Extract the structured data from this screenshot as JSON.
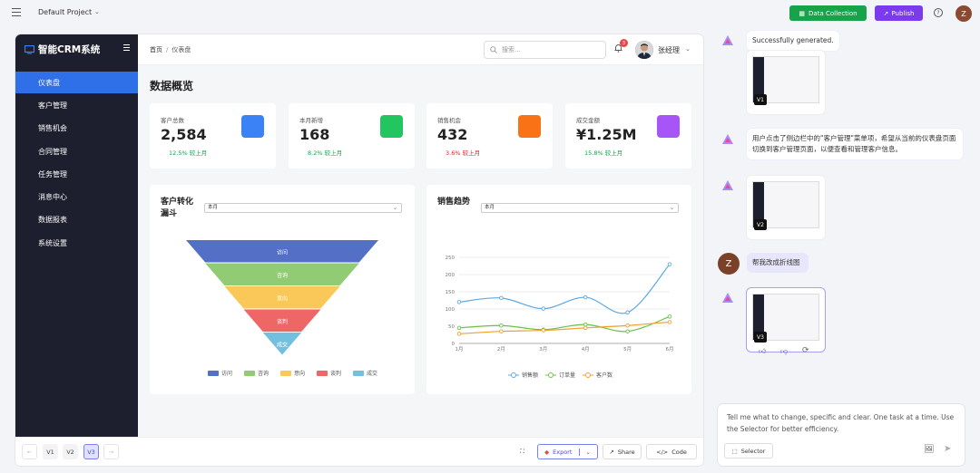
{
  "topbar": {
    "project_name": "Default Project",
    "data_collection_label": "Data Collection",
    "publish_label": "Publish",
    "help_glyph": "?",
    "avatar_letter": "Z"
  },
  "app": {
    "brand": "智能CRM系统",
    "nav": [
      "仪表盘",
      "客户管理",
      "销售机会",
      "合同管理",
      "任务管理",
      "消息中心",
      "数据报表",
      "系统设置"
    ],
    "breadcrumb_home": "首页",
    "breadcrumb_sep": "/",
    "breadcrumb_current": "仪表盘",
    "search_placeholder": "搜索...",
    "notif_count": "3",
    "user_name": "张经理",
    "page_title": "数据概览",
    "stats": [
      {
        "label": "客户总数",
        "value": "2,584",
        "change": "12.5% 较上月",
        "color": "#3b82f6",
        "change_color": "#16a34a"
      },
      {
        "label": "本月新增",
        "value": "168",
        "change": "8.2% 较上月",
        "color": "#22c55e",
        "change_color": "#16a34a"
      },
      {
        "label": "销售机会",
        "value": "432",
        "change": "3.6% 较上月",
        "color": "#f97316",
        "change_color": "#dc2626"
      },
      {
        "label": "成交金额",
        "value": "¥1.25M",
        "change": "15.8% 较上月",
        "color": "#a855f7",
        "change_color": "#16a34a"
      }
    ],
    "funnel_panel": {
      "title": "客户转化漏斗",
      "select": "本月"
    },
    "trend_panel": {
      "title": "销售趋势",
      "select": "本月"
    }
  },
  "chart_data": [
    {
      "type": "funnel",
      "stages": [
        "访问",
        "咨询",
        "意向",
        "谈判",
        "成交"
      ],
      "colors": [
        "#5470c6",
        "#91cc75",
        "#fac858",
        "#ee6666",
        "#73c0de"
      ],
      "legend": [
        "访问",
        "咨询",
        "意向",
        "谈判",
        "成交"
      ],
      "legend_position": "bottom"
    },
    {
      "type": "line",
      "categories": [
        "1月",
        "2月",
        "3月",
        "4月",
        "5月",
        "6月"
      ],
      "ylim": [
        0,
        250
      ],
      "yticks": [
        0,
        50,
        100,
        150,
        200,
        250
      ],
      "grid": true,
      "legend_position": "bottom",
      "series": [
        {
          "name": "销售额",
          "color": "#5aa9e6",
          "values": [
            120,
            132,
            101,
            134,
            90,
            230
          ]
        },
        {
          "name": "订单量",
          "color": "#6cc04a",
          "values": [
            45,
            52,
            40,
            55,
            35,
            78
          ]
        },
        {
          "name": "客户数",
          "color": "#f0a030",
          "values": [
            28,
            35,
            38,
            45,
            52,
            62
          ]
        }
      ]
    }
  ],
  "footer": {
    "versions": [
      "V1",
      "V2",
      "V3"
    ],
    "export_label": "Export",
    "share_label": "Share",
    "code_label": "Code",
    "back_glyph": "←",
    "forward_glyph": "→"
  },
  "chat": {
    "msg1": "Successfully generated.",
    "msg2": "用户点击了侧边栏中的\"客户管理\"菜单项，希望从当前的仪表盘页面切换到客户管理页面，以便查看和管理客户信息。",
    "user_letter": "Z",
    "user_msg": "帮我改成折线图",
    "thumb_tags": [
      "V1",
      "V2",
      "V3"
    ],
    "input_placeholder": "Tell me what to change, specific and clear. One task at a time. Use the Selector for better efficiency.",
    "selector_label": "Selector"
  }
}
